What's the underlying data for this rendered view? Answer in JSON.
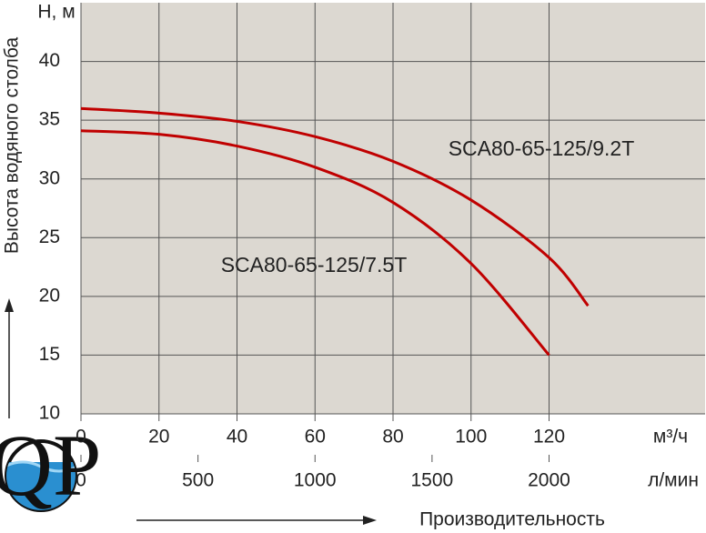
{
  "chart_data": {
    "type": "line",
    "y_label": "Высота водяного столба",
    "y_unit": "H, м",
    "x_unit": "м³/ч",
    "x2_unit": "л/мин",
    "x_title": "Производительность",
    "logo": "QP",
    "xlim": [
      0,
      160
    ],
    "xticks": [
      0,
      20,
      40,
      60,
      80,
      100,
      120
    ],
    "x2lim": [
      0,
      2666.67
    ],
    "x2ticks": [
      0,
      500,
      1000,
      1500,
      2000
    ],
    "ylim": [
      10,
      45
    ],
    "yticks": [
      10,
      15,
      20,
      25,
      30,
      35,
      40
    ],
    "grid": true,
    "series": [
      {
        "name": "SCA80-65-125/9.2T",
        "color": "#c00000",
        "x": [
          0,
          20,
          40,
          60,
          80,
          100,
          120,
          130
        ],
        "values": [
          36,
          35.6,
          34.9,
          33.6,
          31.5,
          28.2,
          23.3,
          19.2
        ]
      },
      {
        "name": "SCA80-65-125/7.5T",
        "color": "#c00000",
        "x": [
          0,
          20,
          40,
          60,
          80,
          100,
          120
        ],
        "values": [
          34.1,
          33.8,
          32.8,
          31.0,
          28.0,
          22.8,
          15
        ]
      }
    ]
  }
}
